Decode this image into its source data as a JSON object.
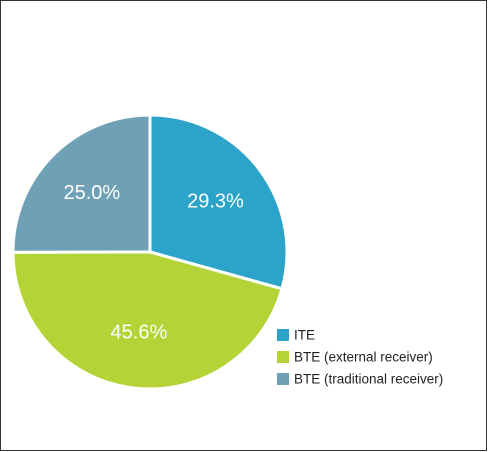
{
  "chart_data": {
    "type": "pie",
    "categories": [
      "ITE",
      "BTE (external receiver)",
      "BTE (traditional receiver)"
    ],
    "values": [
      29.3,
      45.6,
      25.0
    ],
    "value_labels": [
      "29.3%",
      "45.6%",
      "25.0%"
    ],
    "colors": [
      "#2ca3c9",
      "#b4d337",
      "#6fa1b6"
    ],
    "legend": "bottom-right"
  }
}
